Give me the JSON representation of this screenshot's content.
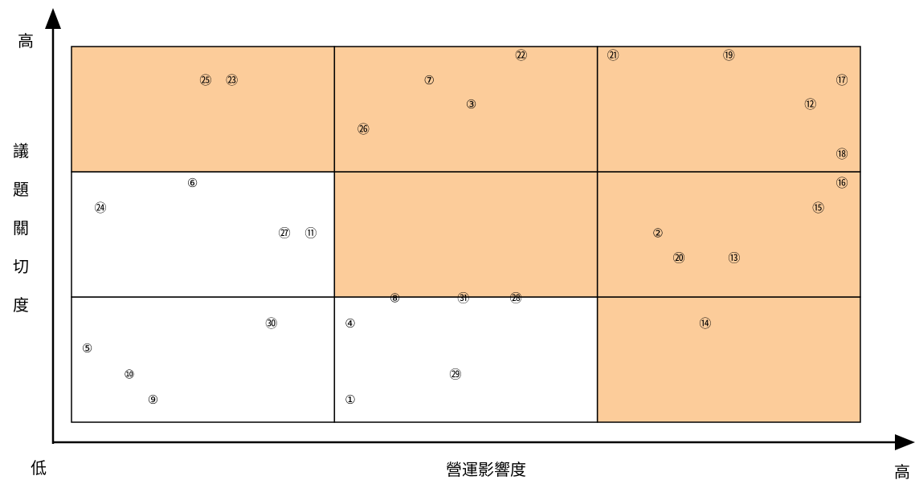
{
  "chart_data": {
    "type": "scatter",
    "title": "",
    "xlabel": "營運影響度",
    "ylabel": "議題關切度",
    "x_low_label": "低",
    "x_high_label": "高",
    "y_high_label": "高",
    "xlim": [
      0,
      3
    ],
    "ylim": [
      0,
      3
    ],
    "grid": "3x3",
    "colors": {
      "highlight": "#FCCC9A",
      "plain": "#FFFFFF",
      "border": "#000000",
      "axis": "#000000"
    },
    "highlighted_cells": [
      [
        0,
        2
      ],
      [
        1,
        2
      ],
      [
        2,
        2
      ],
      [
        1,
        1
      ],
      [
        2,
        1
      ],
      [
        2,
        0
      ]
    ],
    "points": [
      {
        "label": "①",
        "x": 1.06,
        "y": 0.18
      },
      {
        "label": "②",
        "x": 2.23,
        "y": 1.51
      },
      {
        "label": "③",
        "x": 1.52,
        "y": 2.54
      },
      {
        "label": "④",
        "x": 1.06,
        "y": 0.79
      },
      {
        "label": "⑤",
        "x": 0.06,
        "y": 0.59
      },
      {
        "label": "⑥",
        "x": 0.46,
        "y": 1.91
      },
      {
        "label": "⑦",
        "x": 1.36,
        "y": 2.73
      },
      {
        "label": "⑧",
        "x": 1.23,
        "y": 0.99
      },
      {
        "label": "⑨",
        "x": 0.31,
        "y": 0.18
      },
      {
        "label": "⑩",
        "x": 0.22,
        "y": 0.38
      },
      {
        "label": "⑪",
        "x": 0.91,
        "y": 1.51
      },
      {
        "label": "⑫",
        "x": 2.81,
        "y": 2.54
      },
      {
        "label": "⑬",
        "x": 2.52,
        "y": 1.31
      },
      {
        "label": "⑭",
        "x": 2.41,
        "y": 0.79
      },
      {
        "label": "⑮",
        "x": 2.84,
        "y": 1.71
      },
      {
        "label": "⑯",
        "x": 2.93,
        "y": 1.91
      },
      {
        "label": "⑰",
        "x": 2.93,
        "y": 2.73
      },
      {
        "label": "⑱",
        "x": 2.93,
        "y": 2.14
      },
      {
        "label": "⑲",
        "x": 2.5,
        "y": 2.93
      },
      {
        "label": "⑳",
        "x": 2.31,
        "y": 1.31
      },
      {
        "label": "㉑",
        "x": 2.06,
        "y": 2.93
      },
      {
        "label": "㉒",
        "x": 1.71,
        "y": 2.93
      },
      {
        "label": "㉓",
        "x": 0.61,
        "y": 2.73
      },
      {
        "label": "㉔",
        "x": 0.11,
        "y": 1.71
      },
      {
        "label": "㉕",
        "x": 0.51,
        "y": 2.73
      },
      {
        "label": "㉖",
        "x": 1.11,
        "y": 2.34
      },
      {
        "label": "㉗",
        "x": 0.81,
        "y": 1.51
      },
      {
        "label": "㉘",
        "x": 1.69,
        "y": 0.99
      },
      {
        "label": "㉙",
        "x": 1.46,
        "y": 0.38
      },
      {
        "label": "㉚",
        "x": 0.76,
        "y": 0.79
      },
      {
        "label": "㉛",
        "x": 1.49,
        "y": 0.99
      }
    ]
  }
}
